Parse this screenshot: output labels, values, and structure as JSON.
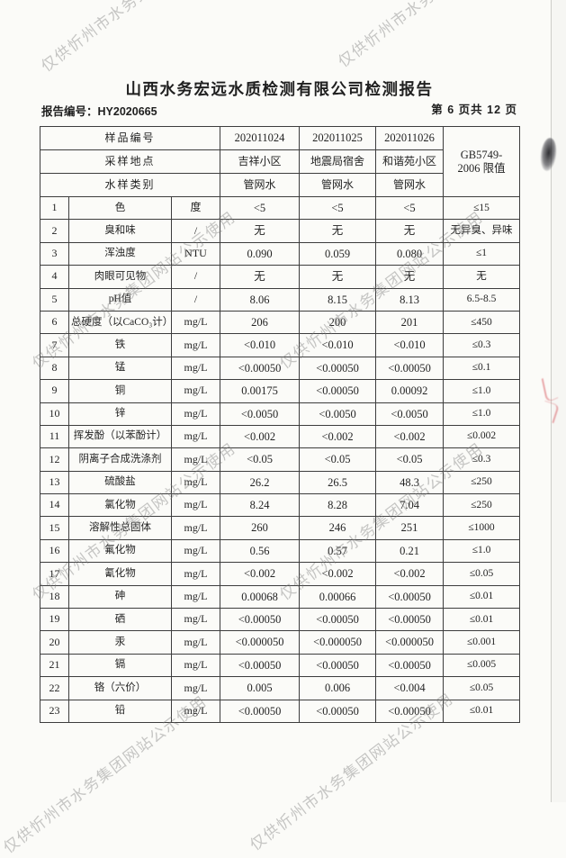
{
  "page": {
    "title": "山西水务宏远水质检测有限公司检测报告",
    "report_no_label": "报告编号：",
    "report_no": "HY2020665",
    "page_indicator": "第 6 页共 12 页"
  },
  "watermark": {
    "text": "仅供忻州市水务集团网站公示使用"
  },
  "colors": {
    "watermark_gray": "#7a7a7a",
    "border": "#3d3d3d",
    "red_artifact": "#cd2832"
  },
  "table": {
    "header": {
      "sample_no_label": "样品编号",
      "location_label": "采样地点",
      "type_label": "水样类别",
      "sample_nos": [
        "202011024",
        "202011025",
        "202011026"
      ],
      "locations": [
        "吉祥小区",
        "地震局宿舍",
        "和谐苑小区"
      ],
      "types": [
        "管网水",
        "管网水",
        "管网水"
      ],
      "limit_header_line1": "GB5749-",
      "limit_header_line2": "2006 限值"
    },
    "rows": [
      {
        "no": "1",
        "name": "色",
        "unit": "度",
        "v1": "<5",
        "v2": "<5",
        "v3": "<5",
        "limit": "≤15"
      },
      {
        "no": "2",
        "name": "臭和味",
        "unit": "/",
        "v1": "无",
        "v2": "无",
        "v3": "无",
        "limit": "无异臭、异味"
      },
      {
        "no": "3",
        "name": "浑浊度",
        "unit": "NTU",
        "v1": "0.090",
        "v2": "0.059",
        "v3": "0.080",
        "limit": "≤1"
      },
      {
        "no": "4",
        "name": "肉眼可见物",
        "unit": "/",
        "v1": "无",
        "v2": "无",
        "v3": "无",
        "limit": "无"
      },
      {
        "no": "5",
        "name": "pH值",
        "unit": "/",
        "v1": "8.06",
        "v2": "8.15",
        "v3": "8.13",
        "limit": "6.5-8.5"
      },
      {
        "no": "6",
        "name": "总硬度（以CaCO₃计）",
        "unit": "mg/L",
        "v1": "206",
        "v2": "200",
        "v3": "201",
        "limit": "≤450"
      },
      {
        "no": "7",
        "name": "铁",
        "unit": "mg/L",
        "v1": "<0.010",
        "v2": "<0.010",
        "v3": "<0.010",
        "limit": "≤0.3"
      },
      {
        "no": "8",
        "name": "锰",
        "unit": "mg/L",
        "v1": "<0.00050",
        "v2": "<0.00050",
        "v3": "<0.00050",
        "limit": "≤0.1"
      },
      {
        "no": "9",
        "name": "铜",
        "unit": "mg/L",
        "v1": "0.00175",
        "v2": "<0.00050",
        "v3": "0.00092",
        "limit": "≤1.0"
      },
      {
        "no": "10",
        "name": "锌",
        "unit": "mg/L",
        "v1": "<0.0050",
        "v2": "<0.0050",
        "v3": "<0.0050",
        "limit": "≤1.0"
      },
      {
        "no": "11",
        "name": "挥发酚（以苯酚计）",
        "unit": "mg/L",
        "v1": "<0.002",
        "v2": "<0.002",
        "v3": "<0.002",
        "limit": "≤0.002"
      },
      {
        "no": "12",
        "name": "阴离子合成洗涤剂",
        "unit": "mg/L",
        "v1": "<0.05",
        "v2": "<0.05",
        "v3": "<0.05",
        "limit": "≤0.3"
      },
      {
        "no": "13",
        "name": "硫酸盐",
        "unit": "mg/L",
        "v1": "26.2",
        "v2": "26.5",
        "v3": "48.3",
        "limit": "≤250"
      },
      {
        "no": "14",
        "name": "氯化物",
        "unit": "mg/L",
        "v1": "8.24",
        "v2": "8.28",
        "v3": "7.04",
        "limit": "≤250"
      },
      {
        "no": "15",
        "name": "溶解性总固体",
        "unit": "mg/L",
        "v1": "260",
        "v2": "246",
        "v3": "251",
        "limit": "≤1000"
      },
      {
        "no": "16",
        "name": "氟化物",
        "unit": "mg/L",
        "v1": "0.56",
        "v2": "0.57",
        "v3": "0.21",
        "limit": "≤1.0"
      },
      {
        "no": "17",
        "name": "氰化物",
        "unit": "mg/L",
        "v1": "<0.002",
        "v2": "<0.002",
        "v3": "<0.002",
        "limit": "≤0.05"
      },
      {
        "no": "18",
        "name": "砷",
        "unit": "mg/L",
        "v1": "0.00068",
        "v2": "0.00066",
        "v3": "<0.00050",
        "limit": "≤0.01"
      },
      {
        "no": "19",
        "name": "硒",
        "unit": "mg/L",
        "v1": "<0.00050",
        "v2": "<0.00050",
        "v3": "<0.00050",
        "limit": "≤0.01"
      },
      {
        "no": "20",
        "name": "汞",
        "unit": "mg/L",
        "v1": "<0.000050",
        "v2": "<0.000050",
        "v3": "<0.000050",
        "limit": "≤0.001"
      },
      {
        "no": "21",
        "name": "镉",
        "unit": "mg/L",
        "v1": "<0.00050",
        "v2": "<0.00050",
        "v3": "<0.00050",
        "limit": "≤0.005"
      },
      {
        "no": "22",
        "name": "铬（六价）",
        "unit": "mg/L",
        "v1": "0.005",
        "v2": "0.006",
        "v3": "<0.004",
        "limit": "≤0.05"
      },
      {
        "no": "23",
        "name": "铅",
        "unit": "mg/L",
        "v1": "<0.00050",
        "v2": "<0.00050",
        "v3": "<0.00050",
        "limit": "≤0.01"
      }
    ]
  }
}
